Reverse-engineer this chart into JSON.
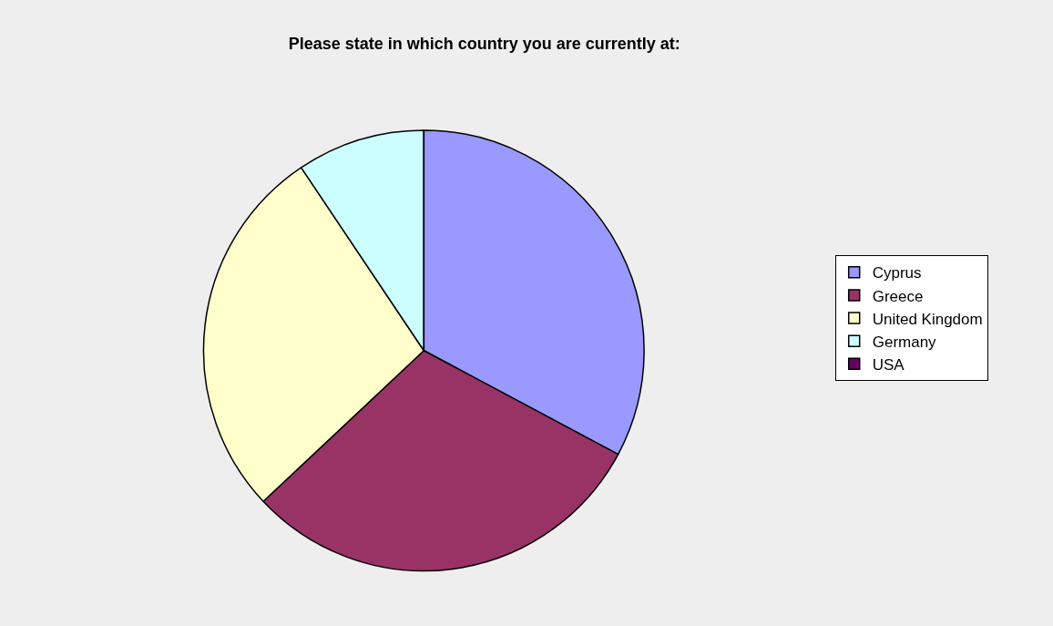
{
  "chart_data": {
    "type": "pie",
    "title": "Please state in which country you are currently at:",
    "categories": [
      "Cyprus",
      "Greece",
      "United Kingdom",
      "Germany",
      "USA"
    ],
    "values": [
      32.8,
      30.2,
      27.6,
      9.4,
      0
    ],
    "colors": [
      "#9999ff",
      "#993366",
      "#ffffcc",
      "#ccffff",
      "#660066"
    ],
    "legend": "right"
  }
}
